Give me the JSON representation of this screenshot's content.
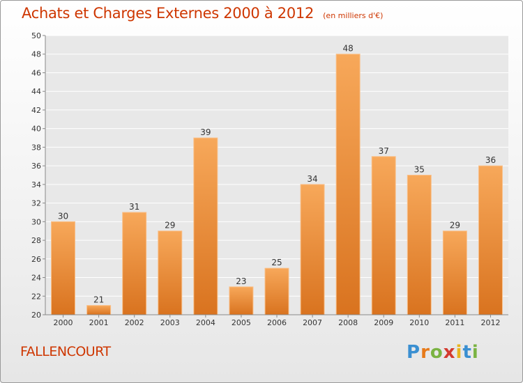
{
  "title": "Achats et Charges Externes 2000 à 2012",
  "unit": "(en milliers d'€)",
  "commune": "FALLENCOURT",
  "brand": "Proxiti",
  "colors": {
    "title": "#ce3600",
    "bar_light": "#f7a85a",
    "bar_dark": "#d9731f",
    "grid": "#ffffff",
    "plot_bg": "#e8e8e8"
  },
  "chart_data": {
    "type": "bar",
    "title": "Achats et Charges Externes 2000 à 2012",
    "subtitle": "(en milliers d'€)",
    "categories": [
      "2000",
      "2001",
      "2002",
      "2003",
      "2004",
      "2005",
      "2006",
      "2007",
      "2008",
      "2009",
      "2010",
      "2011",
      "2012"
    ],
    "values": [
      30,
      21,
      31,
      29,
      39,
      23,
      25,
      34,
      48,
      37,
      35,
      29,
      36
    ],
    "ylim": [
      20,
      50
    ],
    "yticks": [
      20,
      22,
      24,
      26,
      28,
      30,
      32,
      34,
      36,
      38,
      40,
      42,
      44,
      46,
      48,
      50
    ],
    "grid": true,
    "data_labels": true
  }
}
